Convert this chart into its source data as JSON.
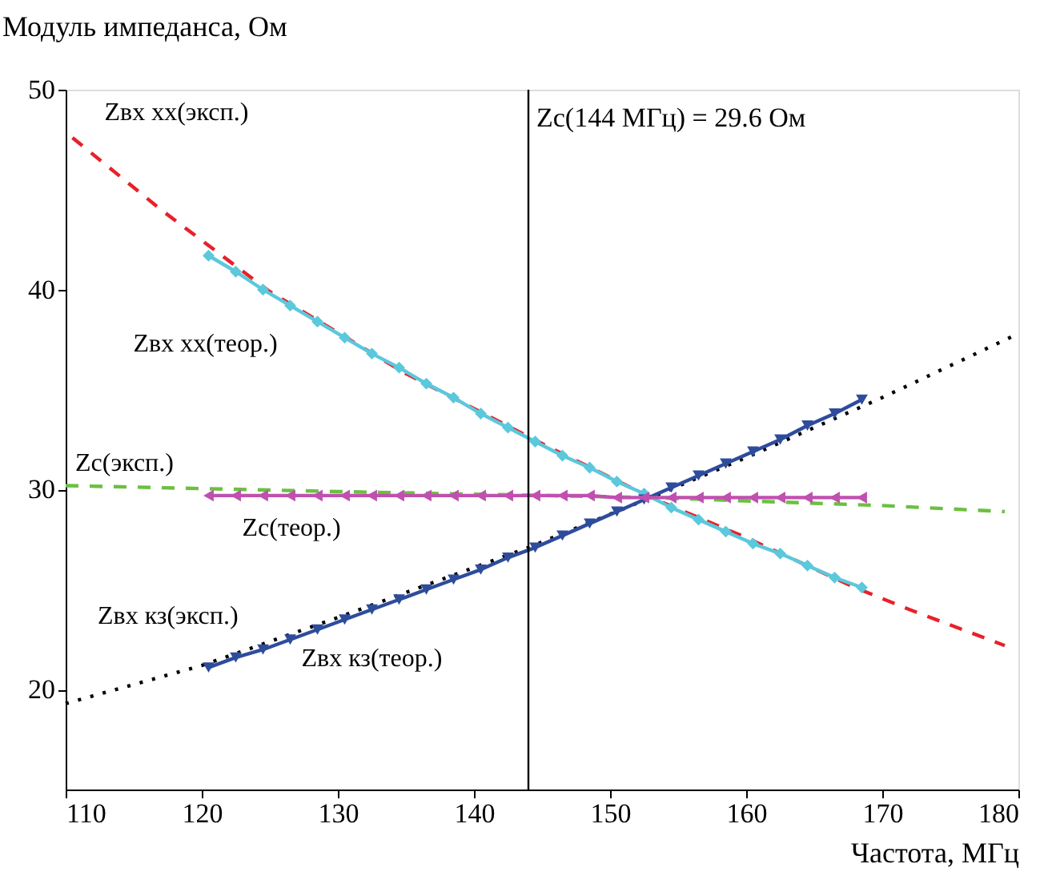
{
  "chart_data": {
    "type": "line",
    "xlabel": "Частота, МГц",
    "ylabel": "Модуль импеданса, Ом",
    "xlim": [
      110,
      180
    ],
    "ylim": [
      15,
      50
    ],
    "xticks": [
      110,
      120,
      130,
      140,
      150,
      160,
      170,
      180
    ],
    "yticks": [
      20,
      30,
      40,
      50
    ],
    "grid": false,
    "series": [
      {
        "name": "Zвх хх(эксп.)",
        "color": "#e8202a",
        "line_style": "dashed",
        "marker": "none",
        "x": [
          110.5,
          117,
          125,
          135,
          145,
          153,
          160,
          168,
          172,
          179
        ],
        "values": [
          47.6,
          44.0,
          39.9,
          35.8,
          32.3,
          29.6,
          27.6,
          25.1,
          24.0,
          22.2
        ]
      },
      {
        "name": "Zвх кз(эксп.)",
        "color": "#000000",
        "line_style": "dotted",
        "marker": "none",
        "x": [
          110,
          120,
          130,
          144,
          153,
          160,
          170,
          180
        ],
        "values": [
          19.3,
          21.2,
          23.6,
          27.1,
          29.6,
          31.6,
          34.6,
          37.8
        ]
      },
      {
        "name": "Zc(эксп.)",
        "color": "#6cc040",
        "line_style": "dashed",
        "marker": "none",
        "x": [
          110,
          130,
          153,
          170,
          179
        ],
        "values": [
          30.2,
          29.9,
          29.6,
          29.2,
          28.9
        ]
      },
      {
        "name": "Zвх хх(теор.)",
        "color": "#5bc8dc",
        "line_style": "solid",
        "marker": "diamond",
        "x": [
          120.5,
          122.5,
          124.5,
          126.5,
          128.5,
          130.5,
          132.5,
          134.5,
          136.5,
          138.5,
          140.5,
          142.5,
          144.5,
          146.5,
          148.5,
          150.5,
          152.5,
          154.5,
          156.5,
          158.5,
          160.5,
          162.5,
          164.5,
          166.5,
          168.5
        ],
        "values": [
          41.7,
          40.9,
          40.0,
          39.2,
          38.4,
          37.6,
          36.8,
          36.1,
          35.3,
          34.6,
          33.8,
          33.1,
          32.4,
          31.7,
          31.1,
          30.4,
          29.8,
          29.1,
          28.5,
          27.9,
          27.3,
          26.8,
          26.2,
          25.6,
          25.1
        ]
      },
      {
        "name": "Zвх кз(теор.)",
        "color": "#2e4c9c",
        "line_style": "solid",
        "marker": "triangle-down",
        "x": [
          120.5,
          122.5,
          124.5,
          126.5,
          128.5,
          130.5,
          132.5,
          134.5,
          136.5,
          138.5,
          140.5,
          142.5,
          144.5,
          146.5,
          148.5,
          150.5,
          152.5,
          154.5,
          156.5,
          158.5,
          160.5,
          162.5,
          164.5,
          166.5,
          168.5
        ],
        "values": [
          21.1,
          21.6,
          22.0,
          22.5,
          23.0,
          23.5,
          24.0,
          24.5,
          25.0,
          25.5,
          26.0,
          26.6,
          27.1,
          27.7,
          28.3,
          28.9,
          29.5,
          30.1,
          30.7,
          31.3,
          31.9,
          32.5,
          33.2,
          33.8,
          34.5
        ]
      },
      {
        "name": "Zc(теор.)",
        "color": "#c050b0",
        "line_style": "solid",
        "marker": "triangle-left",
        "x": [
          120.5,
          122.5,
          124.5,
          126.5,
          128.5,
          130.5,
          132.5,
          134.5,
          136.5,
          138.5,
          140.5,
          142.5,
          144.5,
          146.5,
          148.5,
          150.5,
          152.5,
          154.5,
          156.5,
          158.5,
          160.5,
          162.5,
          164.5,
          166.5,
          168.5
        ],
        "values": [
          29.7,
          29.7,
          29.7,
          29.7,
          29.7,
          29.7,
          29.7,
          29.7,
          29.7,
          29.7,
          29.7,
          29.7,
          29.7,
          29.7,
          29.7,
          29.6,
          29.6,
          29.6,
          29.6,
          29.6,
          29.6,
          29.6,
          29.6,
          29.6,
          29.6
        ]
      }
    ],
    "ref_lines": [
      {
        "axis": "x",
        "value": 144,
        "label": "Zc(144 МГц) = 29.6 Ом",
        "color": "#000000"
      }
    ]
  }
}
